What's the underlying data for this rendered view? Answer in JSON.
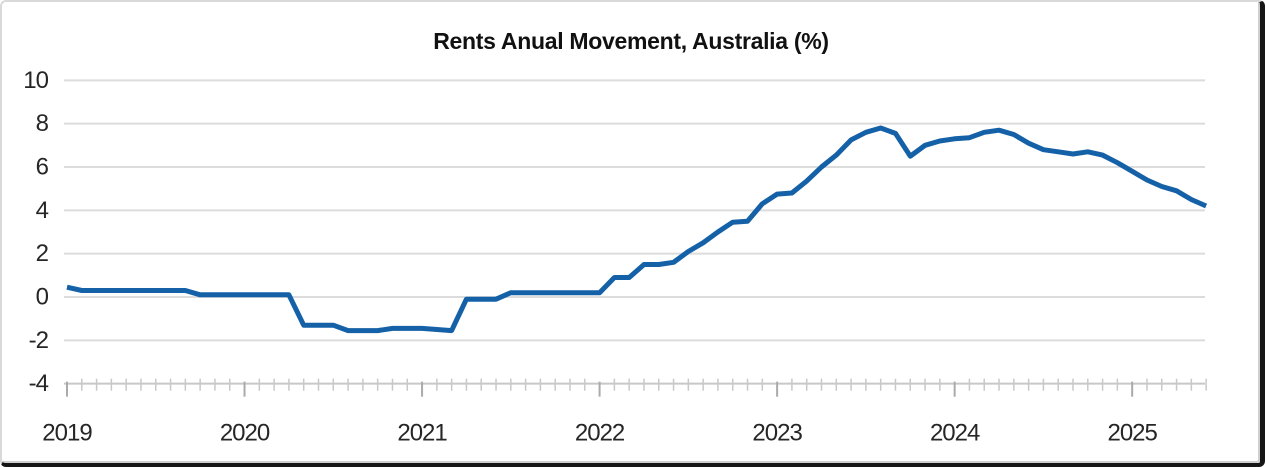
{
  "chart_data": {
    "type": "line",
    "title": "Rents Anual Movement, Australia (%)",
    "xlabel": "",
    "ylabel": "",
    "ylim": [
      -4,
      10
    ],
    "y_ticks": [
      10,
      8,
      6,
      4,
      2,
      0,
      -2,
      -4
    ],
    "y_tick_labels": [
      "10",
      "8",
      "6",
      "4",
      "2",
      "0",
      "-2",
      "-4"
    ],
    "x_tick_labels": [
      "2019",
      "2020",
      "2021",
      "2022",
      "2023",
      "2024",
      "2025"
    ],
    "grid": "horizontal",
    "legend": "none",
    "series": [
      {
        "name": "Rents annual movement (%)",
        "frequency": "monthly",
        "x_start": "2019-01",
        "x_end": "2025-06",
        "values": [
          0.45,
          0.3,
          0.3,
          0.3,
          0.3,
          0.3,
          0.3,
          0.3,
          0.3,
          0.1,
          0.1,
          0.1,
          0.1,
          0.1,
          0.1,
          0.1,
          -1.3,
          -1.3,
          -1.3,
          -1.55,
          -1.55,
          -1.55,
          -1.45,
          -1.45,
          -1.45,
          -1.5,
          -1.55,
          -0.1,
          -0.1,
          -0.1,
          0.2,
          0.2,
          0.2,
          0.2,
          0.2,
          0.2,
          0.2,
          0.9,
          0.9,
          1.5,
          1.5,
          1.6,
          2.1,
          2.5,
          3.0,
          3.45,
          3.5,
          4.3,
          4.75,
          4.8,
          5.35,
          6.0,
          6.55,
          7.25,
          7.6,
          7.8,
          7.55,
          6.5,
          7.0,
          7.2,
          7.3,
          7.35,
          7.6,
          7.7,
          7.5,
          7.1,
          6.8,
          6.7,
          6.6,
          6.7,
          6.55,
          6.2,
          5.8,
          5.4,
          5.1,
          4.9,
          4.5,
          4.2
        ]
      }
    ],
    "colors": {
      "line": "#1561a8",
      "gridline": "#dcdcdc",
      "axis_line": "#c8c8c8",
      "minor_tick": "#c8c8c8",
      "major_tick": "#aaaaaa",
      "text": "#262626",
      "title_text": "#111111",
      "background": "#ffffff"
    }
  }
}
